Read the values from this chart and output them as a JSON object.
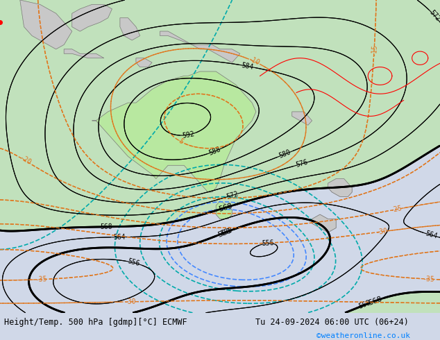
{
  "title_left": "Height/Temp. 500 hPa [gdmp][°C] ECMWF",
  "title_right": "Tu 24-09-2024 06:00 UTC (06+24)",
  "credit": "©weatheronline.co.uk",
  "background_color": "#d0d8e8",
  "land_color": "#c8c8c8",
  "australia_color": "#b8e8a0",
  "font_family": "monospace",
  "bottom_bar_color": "#ffffff",
  "credit_color": "#0080ff"
}
